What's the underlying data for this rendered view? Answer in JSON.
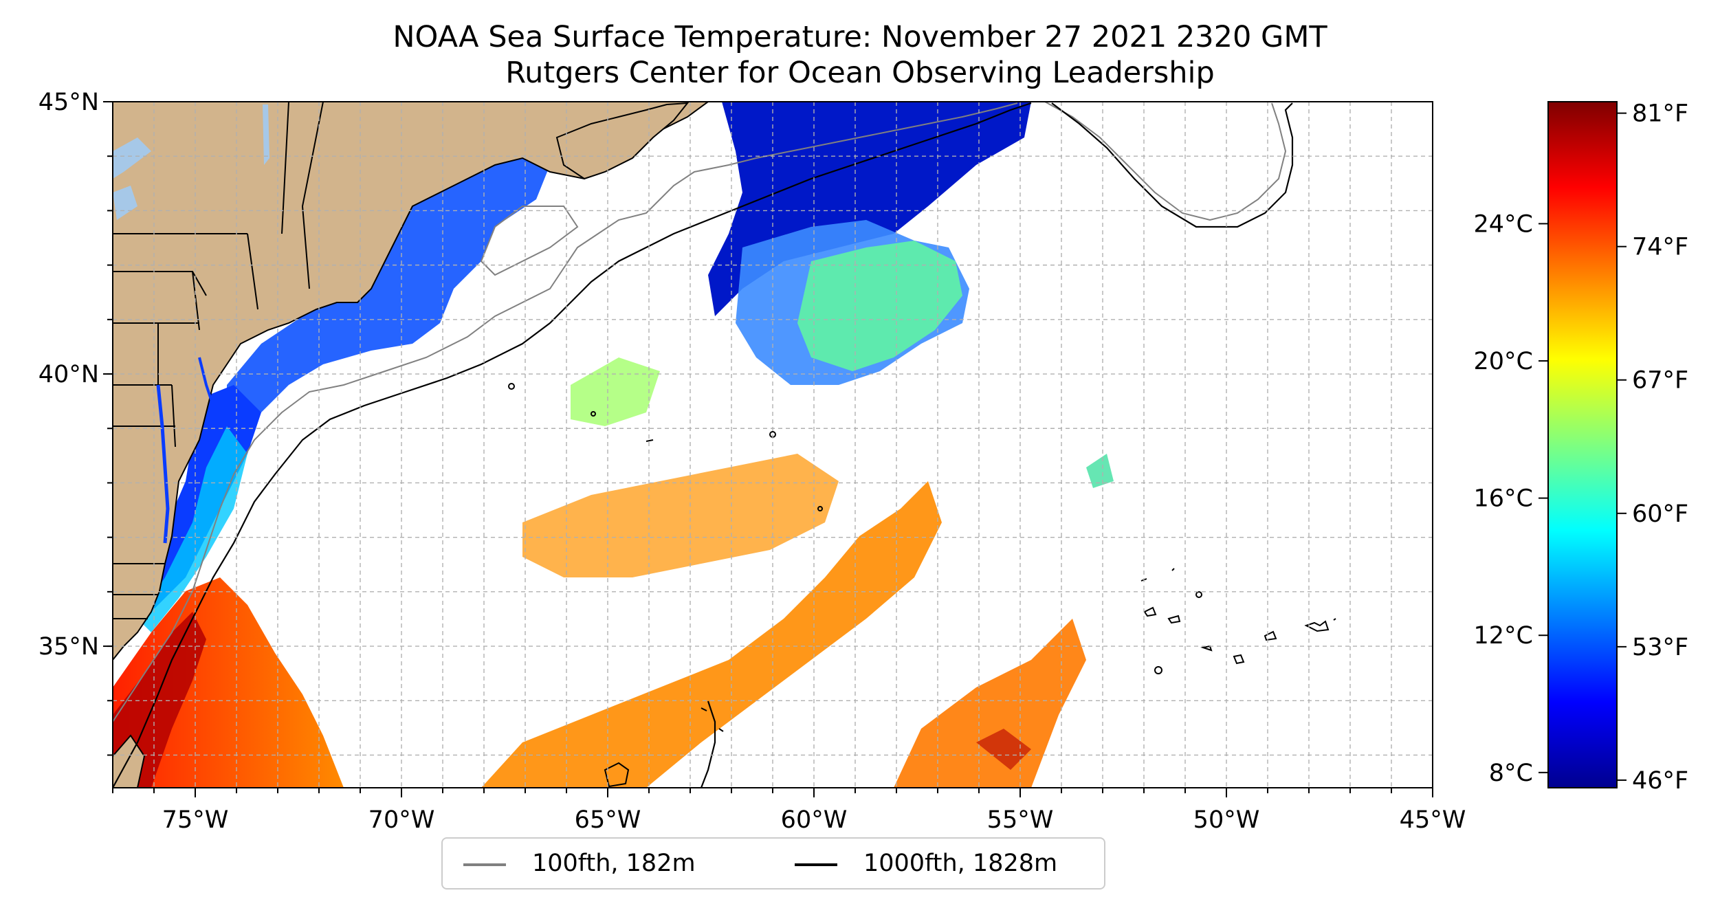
{
  "title": {
    "line1": "NOAA Sea Surface Temperature: November 27 2021 2320 GMT",
    "line2": "Rutgers Center for Ocean Observing Leadership"
  },
  "map": {
    "lon_range": [
      -77,
      -45
    ],
    "lat_range": [
      32.4,
      45
    ],
    "x_ticks": [
      {
        "value": -75,
        "label": "75°W"
      },
      {
        "value": -70,
        "label": "70°W"
      },
      {
        "value": -65,
        "label": "65°W"
      },
      {
        "value": -60,
        "label": "60°W"
      },
      {
        "value": -55,
        "label": "55°W"
      },
      {
        "value": -50,
        "label": "50°W"
      },
      {
        "value": -45,
        "label": "45°W"
      }
    ],
    "y_ticks": [
      {
        "value": 45,
        "label": "45°N"
      },
      {
        "value": 40,
        "label": "40°N"
      },
      {
        "value": 35,
        "label": "35°N"
      }
    ],
    "grid_step_deg": 1,
    "grid": true,
    "colors": {
      "land": "#d2b48c",
      "lake": "#a6c8e8",
      "border": "#000000",
      "contour_100fth": "#808080",
      "contour_1000fth": "#000000",
      "grid": "#b0b0b0"
    }
  },
  "colorbar": {
    "celsius_ticks": [
      {
        "value": 24,
        "label": "24°C"
      },
      {
        "value": 20,
        "label": "20°C"
      },
      {
        "value": 16,
        "label": "16°C"
      },
      {
        "value": 12,
        "label": "12°C"
      },
      {
        "value": 8,
        "label": "8°C"
      }
    ],
    "fahrenheit_ticks": [
      {
        "value": 81,
        "label": "81°F"
      },
      {
        "value": 74,
        "label": "74°F"
      },
      {
        "value": 67,
        "label": "67°F"
      },
      {
        "value": 60,
        "label": "60°F"
      },
      {
        "value": 53,
        "label": "53°F"
      },
      {
        "value": 46,
        "label": "46°F"
      }
    ],
    "f_range": [
      45.6,
      81.6
    ],
    "colormap": "jet",
    "stops": [
      "#00008f",
      "#0000ff",
      "#007fff",
      "#00ffff",
      "#7fff7f",
      "#ffff00",
      "#ff7f00",
      "#ff0000",
      "#7f0000"
    ]
  },
  "legend": {
    "entries": [
      {
        "label": "100fth, 182m",
        "color": "#808080"
      },
      {
        "label": "1000fth, 1828m",
        "color": "#000000"
      }
    ],
    "placement": "bottom-center"
  }
}
